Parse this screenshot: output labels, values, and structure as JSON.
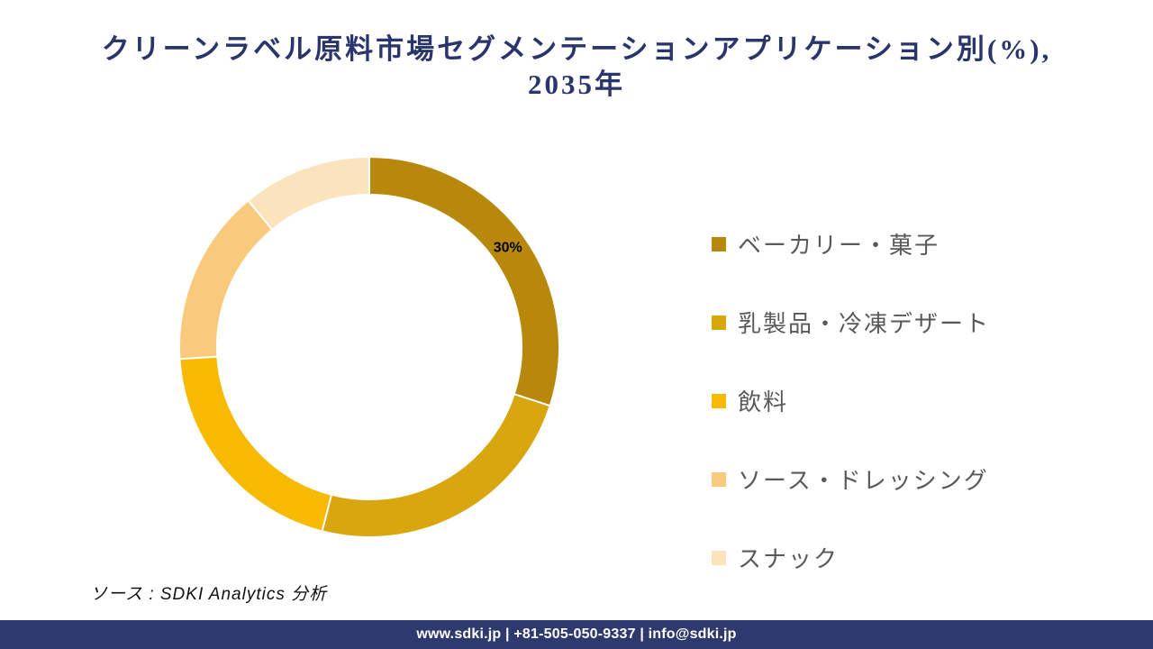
{
  "header": {
    "title_line1": "クリーンラベル原料市場セグメンテーションアプリケーション別(%),",
    "title_line2": "2035年",
    "title_color": "#2A356B"
  },
  "chart_data": {
    "type": "pie",
    "subtype": "donut",
    "title": "クリーンラベル原料市場セグメンテーションアプリケーション別(%), 2035年",
    "categories": [
      "ベーカリー・菓子",
      "乳製品・冷凍デザート",
      "飲料",
      "ソース・ドレッシング",
      "スナック"
    ],
    "values": [
      30,
      24,
      20,
      15,
      11
    ],
    "unit": "%",
    "colors": [
      "#B8880C",
      "#D8A60E",
      "#F7BA00",
      "#F9CA7E",
      "#FAE3BD"
    ],
    "data_labels": [
      "30%",
      "",
      "",
      "",
      ""
    ],
    "data_label_color": "#000000",
    "start_angle_deg": 0,
    "direction": "clockwise",
    "donut_hole_ratio": 0.8,
    "segment_gap_color": "#FFFFFF",
    "legend_position": "right",
    "legend_text_color": "#595959"
  },
  "source": {
    "text": "ソース : SDKI Analytics  分析"
  },
  "footer": {
    "text": "www.sdki.jp | +81-505-050-9337 | info@sdki.jp",
    "background": "#2E3A6D"
  }
}
